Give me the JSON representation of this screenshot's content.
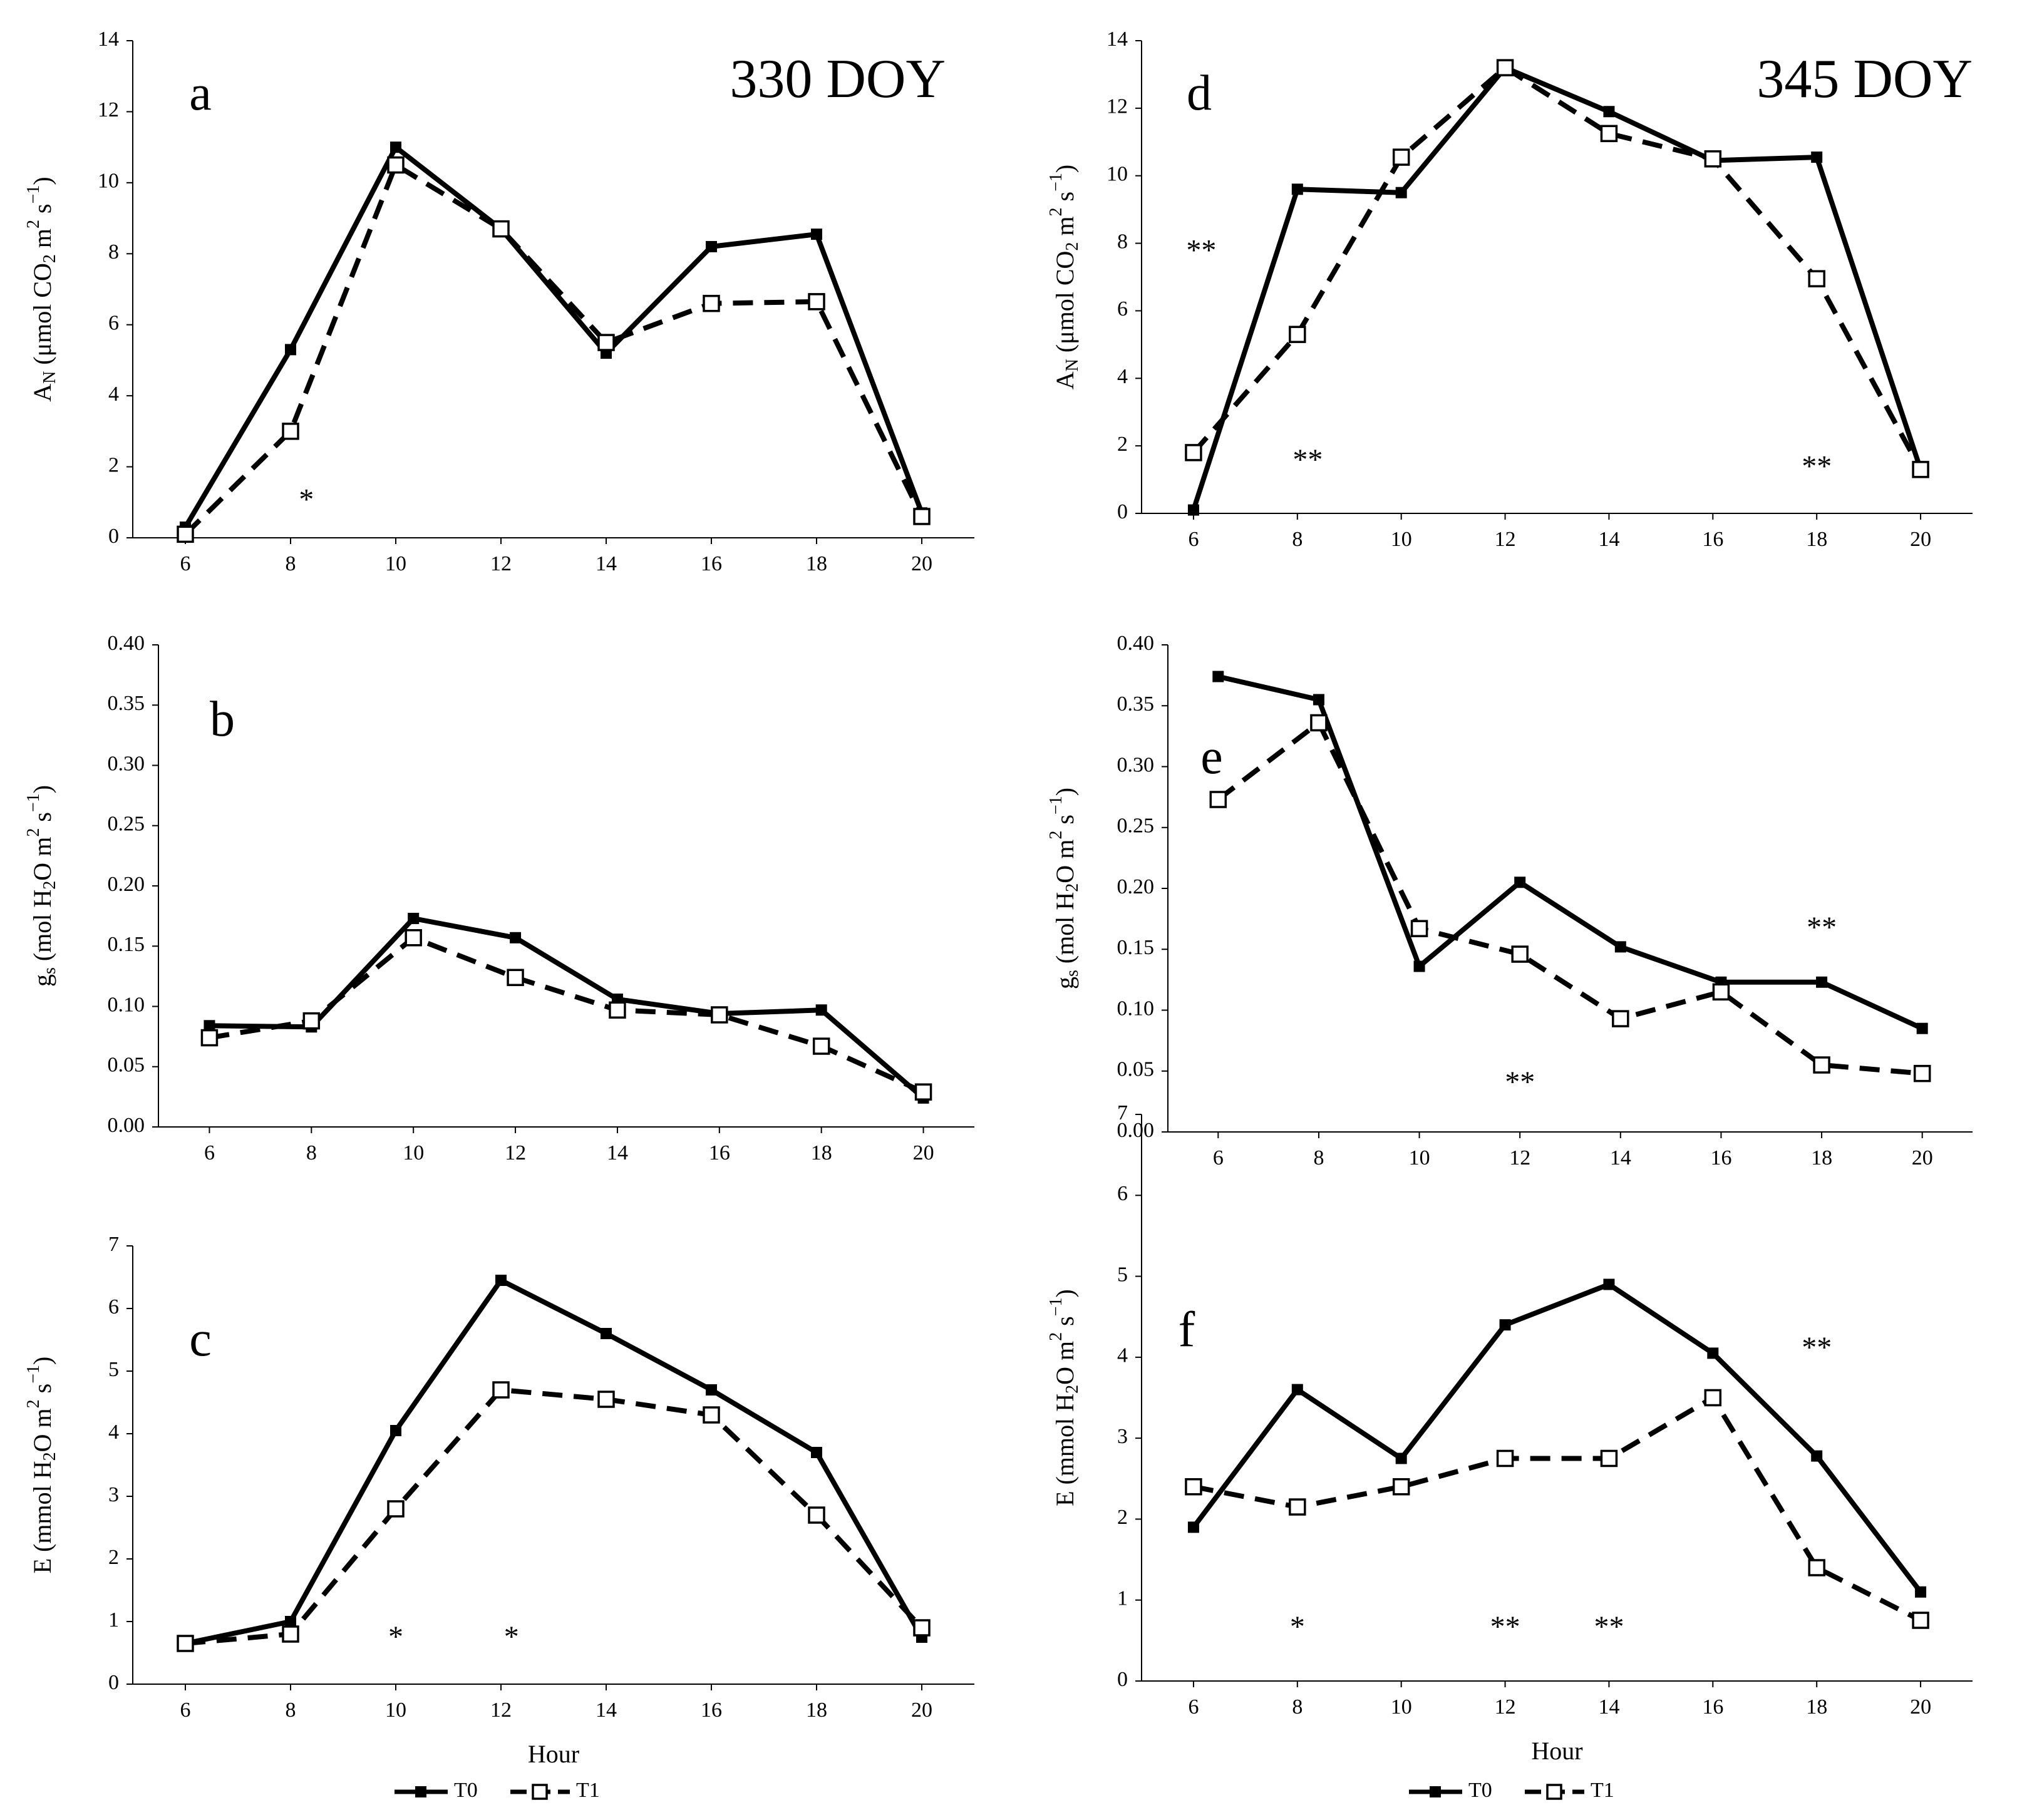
{
  "legend": [
    {
      "label": "T0",
      "color": "#000000",
      "dash": "solid",
      "marker": "filled-square"
    },
    {
      "label": "T1",
      "color": "#000000",
      "dash": "dashed",
      "marker": "open-square"
    }
  ],
  "chart_data": [
    {
      "id": "a",
      "type": "line",
      "letter": "a",
      "title": "330 DOY",
      "xlabel": "",
      "ylabel": "A_N (μmol CO2 m2 s−1)",
      "x": [
        6,
        8,
        10,
        12,
        14,
        16,
        18,
        20
      ],
      "xlim": [
        5,
        21
      ],
      "ylim": [
        0,
        14
      ],
      "yticks": [
        "0",
        "2",
        "4",
        "6",
        "8",
        "10",
        "12",
        "14"
      ],
      "series": [
        {
          "name": "T0",
          "values": [
            0.3,
            5.3,
            11.0,
            8.7,
            5.2,
            8.2,
            8.55,
            0.7
          ]
        },
        {
          "name": "T1",
          "values": [
            0.1,
            3.0,
            10.5,
            8.7,
            5.5,
            6.6,
            6.65,
            0.6
          ]
        }
      ],
      "significance": [
        {
          "x": 8.3,
          "y": 0.8,
          "text": "*"
        }
      ]
    },
    {
      "id": "b",
      "type": "line",
      "letter": "b",
      "xlabel": "",
      "ylabel": "g_s (mol H2O m2 s−1)",
      "x": [
        6,
        8,
        10,
        12,
        14,
        16,
        18,
        20
      ],
      "xlim": [
        5,
        21
      ],
      "ylim": [
        0,
        0.4
      ],
      "yticks": [
        "0.00",
        "0.05",
        "0.10",
        "0.15",
        "0.20",
        "0.25",
        "0.30",
        "0.35",
        "0.40"
      ],
      "series": [
        {
          "name": "T0",
          "values": [
            0.084,
            0.083,
            0.173,
            0.157,
            0.106,
            0.094,
            0.097,
            0.024
          ]
        },
        {
          "name": "T1",
          "values": [
            0.074,
            0.088,
            0.157,
            0.124,
            0.097,
            0.093,
            0.067,
            0.029
          ]
        }
      ],
      "significance": []
    },
    {
      "id": "c",
      "type": "line",
      "letter": "c",
      "xlabel": "Hour",
      "ylabel": "E (mmol H2O m2 s−1)",
      "x": [
        6,
        8,
        10,
        12,
        14,
        16,
        18,
        20
      ],
      "xlim": [
        5,
        21
      ],
      "ylim": [
        0,
        7
      ],
      "yticks": [
        "0",
        "1",
        "2",
        "3",
        "4",
        "5",
        "6",
        "7"
      ],
      "series": [
        {
          "name": "T0",
          "values": [
            0.65,
            1.0,
            4.05,
            6.45,
            5.6,
            4.7,
            3.7,
            0.75
          ]
        },
        {
          "name": "T1",
          "values": [
            0.65,
            0.8,
            2.8,
            4.7,
            4.55,
            4.3,
            2.7,
            0.9
          ]
        }
      ],
      "significance": [
        {
          "x": 10,
          "y": 0.6,
          "text": "*"
        },
        {
          "x": 12.2,
          "y": 0.6,
          "text": "*"
        }
      ]
    },
    {
      "id": "d",
      "type": "line",
      "letter": "d",
      "title": "345 DOY",
      "xlabel": "",
      "ylabel": "A_N (μmol CO2 m2 s−1)",
      "x": [
        6,
        8,
        10,
        12,
        14,
        16,
        18,
        20
      ],
      "xlim": [
        5,
        21
      ],
      "ylim": [
        0,
        14
      ],
      "yticks": [
        "0",
        "2",
        "4",
        "6",
        "8",
        "10",
        "12",
        "14"
      ],
      "series": [
        {
          "name": "T0",
          "values": [
            0.1,
            9.6,
            9.5,
            13.2,
            11.9,
            10.45,
            10.55,
            1.3
          ]
        },
        {
          "name": "T1",
          "values": [
            1.8,
            5.3,
            10.55,
            13.2,
            11.25,
            10.5,
            6.95,
            1.3
          ]
        }
      ],
      "significance": [
        {
          "x": 6.15,
          "y": 7.5,
          "text": "**"
        },
        {
          "x": 8.2,
          "y": 1.3,
          "text": "**"
        },
        {
          "x": 18.0,
          "y": 1.1,
          "text": "**"
        }
      ]
    },
    {
      "id": "e",
      "type": "line",
      "letter": "e",
      "xlabel": "",
      "ylabel": "g_s (mol H2O m2 s−1)",
      "x": [
        6,
        8,
        10,
        12,
        14,
        16,
        18,
        20
      ],
      "xlim": [
        5,
        21
      ],
      "ylim": [
        0,
        0.4
      ],
      "yticks": [
        "0.00",
        "0.05",
        "0.10",
        "0.15",
        "0.20",
        "0.25",
        "0.30",
        "0.35",
        "0.40"
      ],
      "series": [
        {
          "name": "T0",
          "values": [
            0.374,
            0.355,
            0.136,
            0.205,
            0.152,
            0.123,
            0.123,
            0.085
          ]
        },
        {
          "name": "T1",
          "values": [
            0.273,
            0.336,
            0.167,
            0.146,
            0.093,
            0.115,
            0.055,
            0.048
          ]
        }
      ],
      "significance": [
        {
          "x": 18.0,
          "y": 0.16,
          "text": "**"
        },
        {
          "x": 12.0,
          "y": 0.033,
          "text": "**"
        }
      ]
    },
    {
      "id": "f",
      "type": "line",
      "letter": "f",
      "xlabel": "Hour",
      "ylabel": "E (mmol H2O m2 s−1)",
      "x": [
        6,
        8,
        10,
        12,
        14,
        16,
        18,
        20
      ],
      "xlim": [
        5,
        21
      ],
      "ylim": [
        0,
        7
      ],
      "yticks": [
        "0",
        "1",
        "2",
        "3",
        "4",
        "5",
        "6",
        "7"
      ],
      "series": [
        {
          "name": "T0",
          "values": [
            1.9,
            3.6,
            2.75,
            4.4,
            4.9,
            4.05,
            2.78,
            1.1
          ]
        },
        {
          "name": "T1",
          "values": [
            2.4,
            2.15,
            2.4,
            2.75,
            2.75,
            3.5,
            1.4,
            0.75
          ]
        }
      ],
      "significance": [
        {
          "x": 18.0,
          "y": 4.0,
          "text": "**"
        },
        {
          "x": 8.0,
          "y": 0.55,
          "text": "*"
        },
        {
          "x": 12.0,
          "y": 0.55,
          "text": "**"
        },
        {
          "x": 14.0,
          "y": 0.55,
          "text": "**"
        }
      ]
    }
  ]
}
